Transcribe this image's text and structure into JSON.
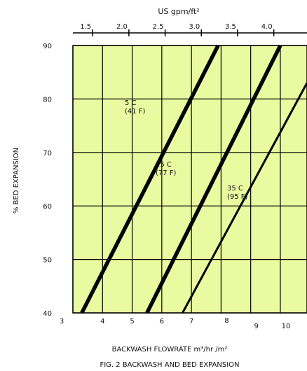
{
  "chart_data": {
    "type": "line",
    "top_axis_title": "US gpm/ft²",
    "top_ticks": [
      "1.5",
      "2.0",
      "2.5",
      "3.0",
      "3.5",
      "4.0"
    ],
    "xlabel": "BACKWASH FLOWRATE m³/hr /m²",
    "ylabel": "% BED EXPANSION",
    "caption": "FIG. 2 BACKWASH AND BED EXPANSION",
    "x_ticks": [
      "3",
      "4",
      "5",
      "6",
      "7",
      "8",
      "9",
      "10"
    ],
    "y_ticks": [
      "40",
      "50",
      "60",
      "70",
      "80",
      "90"
    ],
    "xlim": [
      3,
      10.9
    ],
    "ylim": [
      40,
      90
    ],
    "series": [
      {
        "name": "5 C (41 F)",
        "label_line1": "5 C",
        "label_line2": "(41 F)",
        "x": [
          3.3,
          7.9
        ],
        "y": [
          40,
          90
        ]
      },
      {
        "name": "25 C (77 F)",
        "label_line1": "25 C",
        "label_line2": "(77 F)",
        "x": [
          5.5,
          10.0
        ],
        "y": [
          40,
          90
        ]
      },
      {
        "name": "35 C (95 F)",
        "label_line1": "35 C",
        "label_line2": "(95 F)",
        "x": [
          6.7,
          10.9
        ],
        "y": [
          40,
          83
        ]
      }
    ],
    "grid": true,
    "background_color": "#eafaa0",
    "line_color": "#000000"
  }
}
